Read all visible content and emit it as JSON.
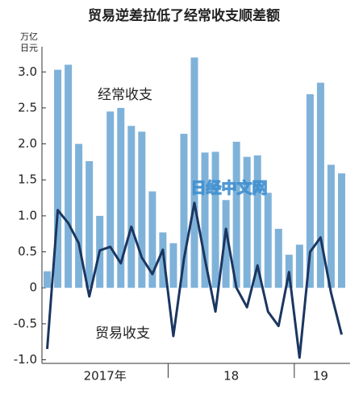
{
  "chart_data": {
    "type": "bar_line",
    "title": "贸易逆差拉低了经常收支顺差额",
    "unit_label": [
      "万亿",
      "日元"
    ],
    "watermark": "日经中文网",
    "categories": [
      null,
      null,
      null,
      null,
      null,
      null,
      null,
      null,
      null,
      null,
      null,
      null,
      null,
      null,
      null,
      null,
      null,
      null,
      null,
      null,
      null,
      null,
      null,
      null,
      null,
      null,
      null,
      null,
      null
    ],
    "groups": [
      {
        "label": "2017年",
        "size": 12
      },
      {
        "label": "18",
        "size": 12
      },
      {
        "label": "19",
        "size": 5
      }
    ],
    "series": [
      {
        "name": "经常收支",
        "type": "bar",
        "color": "#7fb2d9",
        "values": [
          0.23,
          3.03,
          3.1,
          2.0,
          1.76,
          1.0,
          2.45,
          2.5,
          2.25,
          2.17,
          1.34,
          0.77,
          0.62,
          2.14,
          3.2,
          1.88,
          1.89,
          1.22,
          2.03,
          1.82,
          1.84,
          1.32,
          0.82,
          0.46,
          0.6,
          2.69,
          2.85,
          1.71,
          1.59
        ]
      },
      {
        "name": "贸易收支",
        "type": "line",
        "color": "#1b3660",
        "values": [
          -0.85,
          1.08,
          0.9,
          0.62,
          -0.12,
          0.52,
          0.57,
          0.34,
          0.85,
          0.42,
          0.19,
          0.53,
          -0.67,
          0.4,
          1.18,
          0.4,
          -0.33,
          0.82,
          0.0,
          -0.27,
          0.31,
          -0.33,
          -0.53,
          0.22,
          -0.97,
          0.5,
          0.7,
          -0.07,
          -0.65
        ]
      }
    ],
    "ylim": [
      -1.05,
      3.35
    ],
    "yticks": [
      {
        "value": 3.0,
        "label": "3.0"
      },
      2.5,
      {
        "value": 2.0,
        "label": "2.0"
      },
      1.5,
      {
        "value": 1.0,
        "label": "1.0"
      },
      0.5,
      0,
      -0.5,
      {
        "value": -1.0,
        "label": "-1.0"
      }
    ],
    "grid": false
  }
}
